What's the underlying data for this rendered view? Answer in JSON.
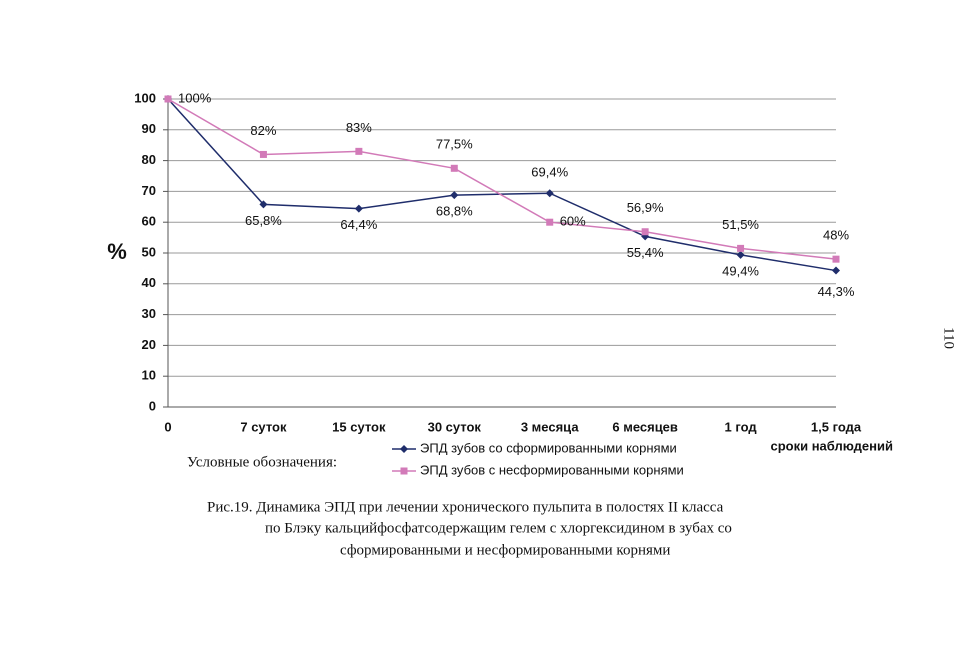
{
  "chart_data": {
    "type": "line",
    "ylabel": "%",
    "xlabel": "сроки наблюдений",
    "categories": [
      "0",
      "7 суток",
      "15 суток",
      "30 суток",
      "3 месяца",
      "6 месяцев",
      "1 год",
      "1,5 года"
    ],
    "ylim": [
      0,
      100
    ],
    "yticks": [
      0,
      10,
      20,
      30,
      40,
      50,
      60,
      70,
      80,
      90,
      100
    ],
    "grid": true,
    "legend_title": "Условные обозначения:",
    "series": [
      {
        "name": "ЭПД зубов со сформированными корнями",
        "color": "#1f2d6b",
        "marker": "diamond",
        "values": [
          100,
          65.8,
          64.4,
          68.8,
          69.4,
          55.4,
          49.4,
          44.3
        ],
        "value_labels": [
          "100%",
          "65,8%",
          "64,4%",
          "68,8%",
          "69,4%",
          "55,4%",
          "49,4%",
          "44,3%"
        ]
      },
      {
        "name": "ЭПД зубов с несформированными корнями",
        "color": "#d27ab8",
        "marker": "square",
        "values": [
          100,
          82,
          83,
          77.5,
          60,
          56.9,
          51.5,
          48
        ],
        "value_labels": [
          null,
          "82%",
          "83%",
          "77,5%",
          "60%",
          "56,9%",
          "51,5%",
          "48%"
        ]
      }
    ]
  },
  "caption": [
    "Рис.19. Динамика ЭПД при лечении хронического пульпита в полостях II класса",
    "по Блэку кальцийфосфатсодержащим гелем с хлоргексидином в зубах со",
    "сформированными и несформированными корнями"
  ],
  "page_number": "110"
}
